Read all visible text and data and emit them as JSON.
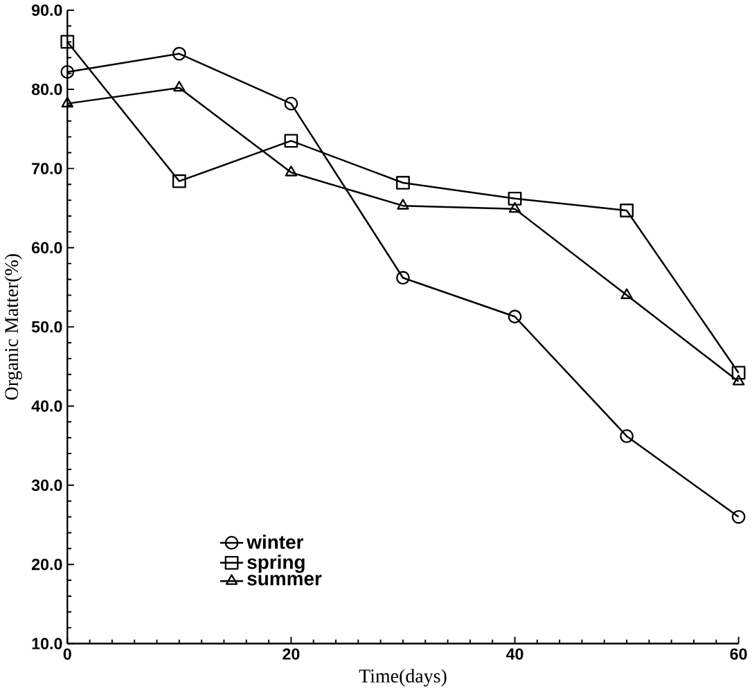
{
  "chart_data": {
    "type": "line",
    "xlabel": "Time(days)",
    "ylabel": "Organic  Matter(%)",
    "x": [
      0,
      10,
      20,
      30,
      40,
      50,
      60
    ],
    "series": [
      {
        "name": "winter",
        "color": "#000000",
        "marker": "circle",
        "values": [
          82.2,
          84.5,
          78.2,
          56.2,
          51.3,
          36.2,
          26.0
        ]
      },
      {
        "name": "spring",
        "color": "#000000",
        "marker": "square",
        "values": [
          86.0,
          68.4,
          73.5,
          68.2,
          66.2,
          64.7,
          44.2
        ]
      },
      {
        "name": "summer",
        "color": "#000000",
        "marker": "triangle",
        "values": [
          78.2,
          80.2,
          69.5,
          65.3,
          64.9,
          54.0,
          43.1
        ]
      }
    ],
    "xlim": [
      0,
      60
    ],
    "xticks": [
      0,
      20,
      40,
      60
    ],
    "ylim": [
      10,
      90
    ],
    "yticks": [
      {
        "value": 10,
        "label": "10.0"
      },
      {
        "value": 20,
        "label": "20.0"
      },
      {
        "value": 30,
        "label": "30.0"
      },
      {
        "value": 40,
        "label": "40.0"
      },
      {
        "value": 50,
        "label": "50.0"
      },
      {
        "value": 60,
        "label": "60.0"
      },
      {
        "value": 70,
        "label": "70.0"
      },
      {
        "value": 80,
        "label": "80.0"
      },
      {
        "value": 90,
        "label": "90.0"
      }
    ],
    "grid": false,
    "legend": "bottom left",
    "line_style": "solid"
  }
}
